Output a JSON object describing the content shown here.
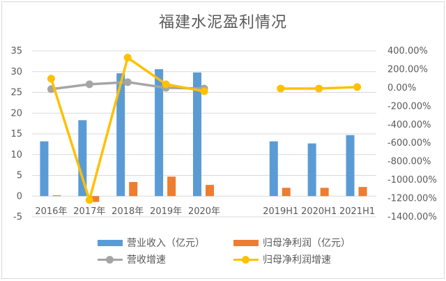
{
  "chart_data": {
    "type": "bar",
    "title": "福建水泥盈利情况",
    "categories": [
      "2016年",
      "2017年",
      "2018年",
      "2019年",
      "2020年",
      "",
      "2019H1",
      "2020H1",
      "2021H1"
    ],
    "series": [
      {
        "name": "营业收入（亿元）",
        "type": "bar",
        "axis": "left",
        "color": "#5b9bd5",
        "values": [
          13.2,
          18.3,
          29.6,
          30.6,
          29.8,
          null,
          13.2,
          12.7,
          14.7
        ]
      },
      {
        "name": "归母净利润（亿元）",
        "type": "bar",
        "axis": "left",
        "color": "#ed7d31",
        "values": [
          0.2,
          -1.4,
          3.4,
          4.7,
          2.7,
          null,
          2.0,
          2.0,
          2.2
        ]
      },
      {
        "name": "营收增速",
        "type": "line",
        "axis": "right",
        "color": "#a5a5a5",
        "values": [
          -15,
          38,
          61,
          0,
          -8,
          null,
          null,
          null,
          null
        ]
      },
      {
        "name": "归母净利润增速",
        "type": "line",
        "axis": "right",
        "color": "#ffc000",
        "values": [
          99,
          -1217,
          327,
          38,
          -38,
          null,
          -8,
          -8,
          8
        ]
      }
    ],
    "left_axis": {
      "min": -5,
      "max": 35,
      "step": 5,
      "ticks": [
        "35",
        "30",
        "25",
        "20",
        "15",
        "10",
        "5",
        "0",
        "-5"
      ]
    },
    "right_axis": {
      "min": -1400,
      "max": 400,
      "step": 200,
      "ticks": [
        "400.00%",
        "200.00%",
        "0.00%",
        "-200.00%",
        "-400.00%",
        "-600.00%",
        "-800.00%",
        "-1000.00%",
        "-1200.00%",
        "-1400.00%"
      ]
    },
    "grid": true,
    "legend_position": "bottom"
  },
  "legend": [
    {
      "label": "营业收入（亿元）",
      "color": "#5b9bd5",
      "kind": "bar"
    },
    {
      "label": "归母净利润（亿元）",
      "color": "#ed7d31",
      "kind": "bar"
    },
    {
      "label": "营收增速",
      "color": "#a5a5a5",
      "kind": "line"
    },
    {
      "label": "归母净利润增速",
      "color": "#ffc000",
      "kind": "line"
    }
  ]
}
